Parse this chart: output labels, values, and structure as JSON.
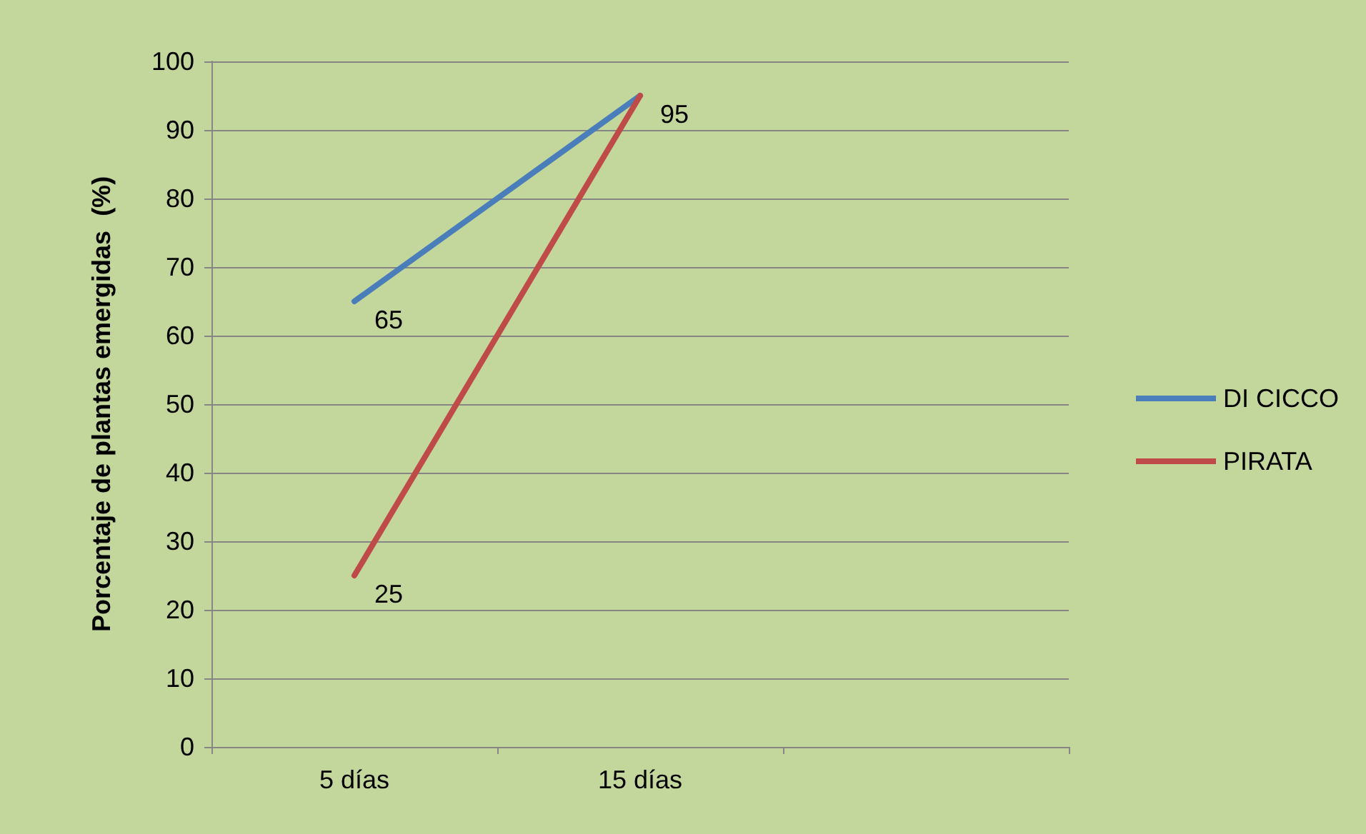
{
  "chart_data": {
    "type": "line",
    "ylabel": "Porcentaje de plantas emergidas  (%)",
    "categories": [
      "5 días",
      "15 días",
      null
    ],
    "series": [
      {
        "name": "DI CICCO",
        "color": "#4a7ebb",
        "values": [
          65,
          95,
          null
        ],
        "value_labels": [
          "65",
          "95",
          null
        ]
      },
      {
        "name": "PIRATA",
        "color": "#be4b48",
        "values": [
          25,
          95,
          null
        ],
        "value_labels": [
          "25",
          null,
          null
        ]
      }
    ],
    "ylim": [
      0,
      100
    ],
    "yticks": [
      0,
      10,
      20,
      30,
      40,
      50,
      60,
      70,
      80,
      90,
      100
    ],
    "grid": "y",
    "legend": "right",
    "marker": "none",
    "line_style": "solid"
  }
}
